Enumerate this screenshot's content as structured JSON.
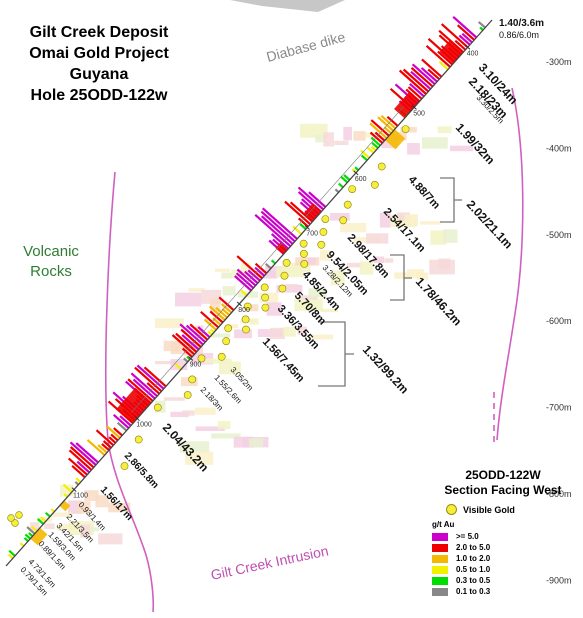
{
  "title": {
    "line1": "Gilt Creek Deposit",
    "line2": "Omai Gold Project",
    "line3": "Guyana",
    "line4": "Hole 25ODD-122w"
  },
  "rock_labels": {
    "diabase": "Diabase dike",
    "volcanic_line1": "Volcanic",
    "volcanic_line2": "Rocks",
    "intrusion": "Gilt Creek Intrusion"
  },
  "elevation_labels": [
    "-300m",
    "-400m",
    "-500m",
    "-600m",
    "-700m",
    "-800m",
    "-900m"
  ],
  "depth_marks": [
    "400",
    "500",
    "600",
    "700",
    "800",
    "900",
    "1000",
    "1100"
  ],
  "intercepts": [
    "1.40/3.6m",
    "0.86/6.0m",
    "3.10/24m",
    "2.18/23m",
    "3.30/2.5m",
    "1.99/32m",
    "4.88/7m",
    "2.54/17.1m",
    "2.98/17.8m",
    "9.54/2.05m",
    "3.28/2.12m",
    "4.85/2.4m",
    "5.70/8m",
    "3.36/3.55m",
    "1.56/7.45m",
    "3.05/2m",
    "1.55/2.6m",
    "2.18/3m",
    "2.04/43.2m",
    "2.86/5.8m",
    "1.56/17m",
    "0.93/1.4m",
    "2.21/3.5m",
    "3.42/1.5m",
    "1.59/3.0m",
    "0.89/1.5m",
    "4.73/1.5m",
    "0.79/1.5m"
  ],
  "composites": [
    "2.02/21.1m",
    "1.78/46.2m",
    "1.32/99.2m"
  ],
  "legend": {
    "title_line1": "25ODD-122W",
    "title_line2": "Section Facing West",
    "visible_gold": "Visible Gold",
    "units": "g/t Au",
    "grades": [
      {
        "label": ">= 5.0",
        "color": "#cc00cc"
      },
      {
        "label": "2.0 to 5.0",
        "color": "#ee0000"
      },
      {
        "label": "1.0 to 2.0",
        "color": "#f5b800"
      },
      {
        "label": "0.5 to 1.0",
        "color": "#f2f200"
      },
      {
        "label": "0.3 to 0.5",
        "color": "#00dd00"
      },
      {
        "label": "0.1 to 0.3",
        "color": "#888888"
      }
    ]
  },
  "colors": {
    "gold_dot": "#f5ee3a",
    "intrusion_contact": "#d060c0",
    "volcanic_text": "#2e7d32",
    "intrusion_text": "#c04fb0",
    "diabase_text": "#8a8a8a"
  }
}
